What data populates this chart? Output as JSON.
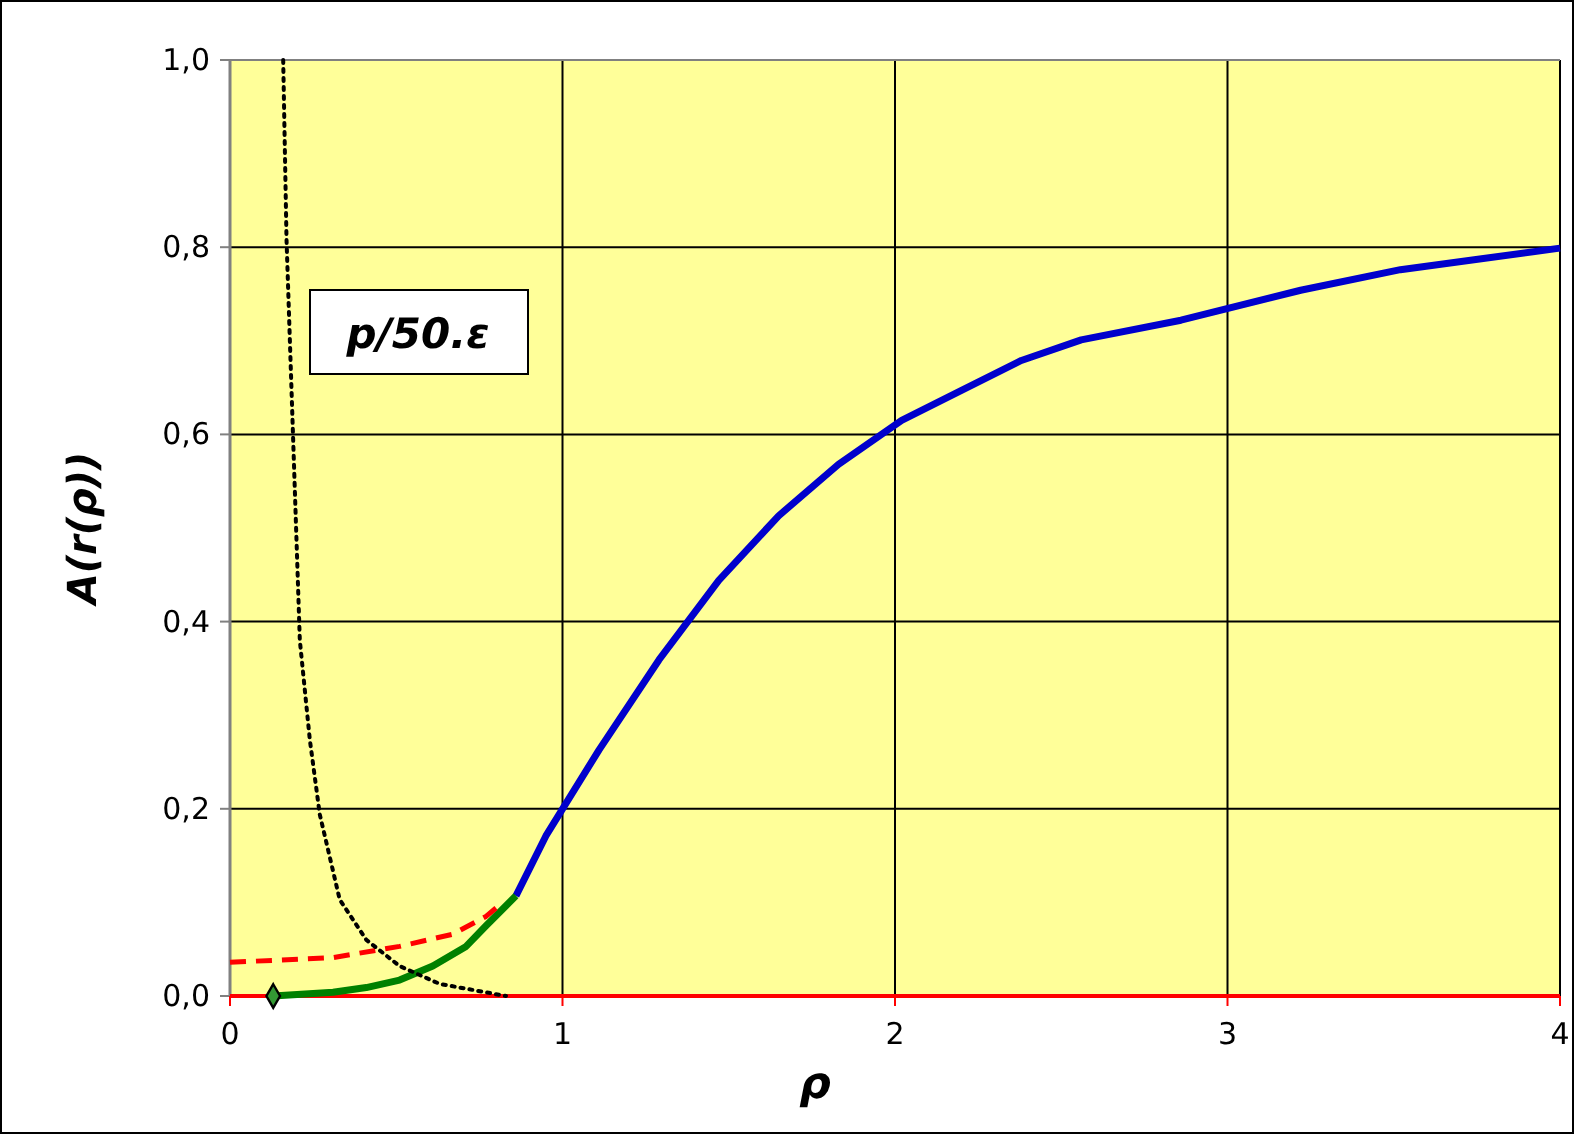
{
  "chart_data": {
    "type": "line",
    "xlabel": "ρ",
    "ylabel": "A(r(ρ))",
    "xlim": [
      0,
      4
    ],
    "xticks": [
      0,
      1,
      2,
      3,
      4
    ],
    "ylim": [
      0,
      1
    ],
    "yticks": [
      {
        "value": 0,
        "label": "0,0"
      },
      {
        "value": 0.2,
        "label": "0,2"
      },
      {
        "value": 0.4,
        "label": "0,4"
      },
      {
        "value": 0.6,
        "label": "0,6"
      },
      {
        "value": 0.8,
        "label": "0,8"
      },
      {
        "value": 1,
        "label": "1,0"
      }
    ],
    "grid": true,
    "annotations": [
      "p/50.ε"
    ],
    "series": [
      {
        "color": "#ff0000",
        "line_style": "solid",
        "x": [
          0,
          4
        ],
        "values": [
          0,
          0
        ]
      },
      {
        "color": "#0000cc",
        "line_style": "solid",
        "x": [
          0.86,
          0.95,
          1.11,
          1.29,
          1.47,
          1.65,
          1.83,
          2.02,
          2.2,
          2.38,
          2.56,
          2.86,
          3.22,
          3.52,
          4.0
        ],
        "values": [
          0.107,
          0.171,
          0.263,
          0.359,
          0.444,
          0.513,
          0.568,
          0.615,
          0.647,
          0.679,
          0.701,
          0.722,
          0.754,
          0.776,
          0.799
        ]
      },
      {
        "color": "#008000",
        "line_style": "solid",
        "x": [
          0.13,
          0.31,
          0.41,
          0.51,
          0.61,
          0.71,
          0.77,
          0.86
        ],
        "values": [
          0,
          0.004,
          0.009,
          0.017,
          0.032,
          0.053,
          0.075,
          0.107
        ]
      },
      {
        "color": "#ff0000",
        "line_style": "dashed",
        "x": [
          0,
          0.31,
          0.51,
          0.67,
          0.77,
          0.82
        ],
        "values": [
          0.036,
          0.041,
          0.053,
          0.066,
          0.085,
          0.1
        ]
      },
      {
        "color": "#000000",
        "line_style": "dotted",
        "x": [
          0.16,
          0.17,
          0.19,
          0.21,
          0.24,
          0.27,
          0.33,
          0.41,
          0.51,
          0.63,
          0.83
        ],
        "values": [
          1.0,
          0.808,
          0.594,
          0.38,
          0.274,
          0.194,
          0.103,
          0.06,
          0.032,
          0.013,
          0
        ]
      },
      {
        "type": "scatter",
        "color": "#000000",
        "marker": "diamond",
        "x": [
          0.13
        ],
        "values": [
          0
        ]
      }
    ]
  }
}
